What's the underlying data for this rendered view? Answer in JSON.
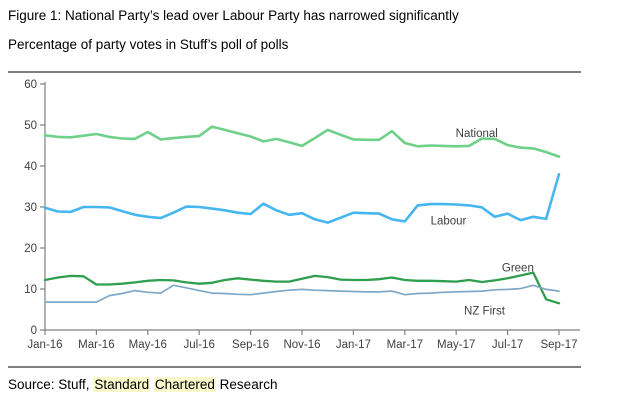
{
  "figure": {
    "title": "Figure 1: National Party’s lead over Labour Party has narrowed significantly",
    "subtitle": "Percentage of party votes in Stuff’s poll of polls"
  },
  "source": {
    "prefix": "Source: Stuff, ",
    "highlight_word_1": "Standard",
    "highlight_word_2": "Chartered",
    "suffix": " Research",
    "highlight_color": "#fbf8cc"
  },
  "chart_data": {
    "type": "line",
    "title": "Percentage of party votes in Stuff's poll of polls",
    "xlabel": "",
    "ylabel": "",
    "x_unit": "months since Jan-2016",
    "ylim": [
      0,
      60
    ],
    "y_ticks": [
      0,
      10,
      20,
      30,
      40,
      50,
      60
    ],
    "x_tick_positions": [
      0,
      2,
      4,
      6,
      8,
      10,
      12,
      14,
      16,
      18,
      20
    ],
    "x_tick_labels": [
      "Jan-16",
      "Mar-16",
      "May-16",
      "Jul-16",
      "Sep-16",
      "Nov-16",
      "Jan-17",
      "Mar-17",
      "May-17",
      "Jul-17",
      "Sep-17"
    ],
    "grid": false,
    "legend_position": "inline-labels",
    "axis_color": "#808080",
    "tick_text_color": "#404040",
    "x": [
      0,
      0.5,
      1,
      1.5,
      2,
      2.5,
      3,
      3.5,
      4,
      4.5,
      5,
      5.5,
      6,
      6.5,
      7,
      7.5,
      8,
      8.5,
      9,
      9.5,
      10,
      10.5,
      11,
      11.5,
      12,
      12.5,
      13,
      13.5,
      14,
      14.5,
      15,
      15.5,
      16,
      16.5,
      17,
      17.5,
      18,
      18.5,
      19,
      19.5,
      20
    ],
    "series": [
      {
        "name": "National",
        "color": "#6fd08a",
        "label_pos": {
          "x": 16.8,
          "y": 48.0
        },
        "values": [
          47.5,
          47.1,
          47.0,
          47.4,
          47.8,
          47.1,
          46.7,
          46.6,
          48.3,
          46.5,
          46.8,
          47.1,
          47.3,
          49.6,
          48.8,
          48.0,
          47.2,
          46.0,
          46.6,
          45.8,
          44.9,
          46.8,
          48.8,
          47.6,
          46.5,
          46.4,
          46.4,
          48.5,
          45.6,
          44.8,
          45.0,
          44.9,
          44.8,
          44.9,
          46.7,
          46.6,
          45.1,
          44.5,
          44.3,
          43.4,
          42.3
        ]
      },
      {
        "name": "Labour",
        "color": "#45b6f0",
        "label_pos": {
          "x": 15.7,
          "y": 26.7
        },
        "values": [
          29.8,
          28.9,
          28.8,
          30.0,
          30.0,
          29.9,
          29.0,
          28.1,
          27.6,
          27.3,
          28.6,
          30.1,
          30.0,
          29.6,
          29.2,
          28.6,
          28.3,
          30.8,
          29.2,
          28.1,
          28.5,
          27.0,
          26.2,
          27.4,
          28.6,
          28.5,
          28.4,
          27.0,
          26.5,
          30.4,
          30.7,
          30.7,
          30.6,
          30.4,
          29.9,
          27.6,
          28.4,
          26.8,
          27.6,
          27.1,
          38.0
        ]
      },
      {
        "name": "Green",
        "color": "#2f9e4f",
        "label_pos": {
          "x": 18.4,
          "y": 15.2
        },
        "values": [
          12.2,
          12.8,
          13.2,
          13.1,
          11.1,
          11.1,
          11.3,
          11.6,
          12.0,
          12.2,
          12.1,
          11.6,
          11.3,
          11.5,
          12.2,
          12.6,
          12.3,
          12.0,
          11.8,
          11.8,
          12.5,
          13.2,
          12.9,
          12.3,
          12.2,
          12.2,
          12.4,
          12.8,
          12.2,
          12.0,
          12.0,
          11.9,
          11.8,
          12.2,
          11.7,
          12.1,
          12.6,
          13.3,
          14.0,
          7.5,
          6.5
        ]
      },
      {
        "name": "NZ First",
        "color": "#7fa8c7",
        "label_pos": {
          "x": 17.1,
          "y": 4.8
        },
        "values": [
          6.8,
          6.8,
          6.8,
          6.8,
          6.8,
          8.4,
          8.9,
          9.6,
          9.2,
          9.0,
          10.9,
          10.3,
          9.6,
          9.0,
          8.9,
          8.7,
          8.6,
          9.0,
          9.4,
          9.7,
          9.9,
          9.7,
          9.6,
          9.5,
          9.4,
          9.3,
          9.3,
          9.5,
          8.6,
          8.9,
          9.0,
          9.2,
          9.3,
          9.4,
          9.5,
          9.8,
          9.9,
          10.1,
          10.9,
          9.9,
          9.5
        ]
      }
    ]
  }
}
